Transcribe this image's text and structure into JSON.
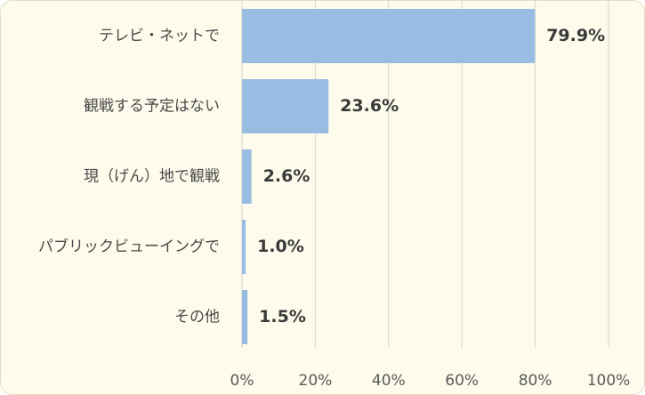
{
  "chart_data": {
    "type": "bar",
    "orientation": "horizontal",
    "categories": [
      "テレビ・ネットで",
      "観戦する予定はない",
      "現（げん）地で観戦",
      "パブリックビューイングで",
      "その他"
    ],
    "values": [
      79.9,
      23.6,
      2.6,
      1.0,
      1.5
    ],
    "value_labels": [
      "79.9%",
      "23.6%",
      "2.6%",
      "1.0%",
      "1.5%"
    ],
    "xlim": [
      0,
      100
    ],
    "x_ticks": [
      0,
      20,
      40,
      60,
      80,
      100
    ],
    "x_tick_labels": [
      "0%",
      "20%",
      "40%",
      "60%",
      "80%",
      "100%"
    ],
    "grid": "vertical",
    "legend": "none",
    "colors": {
      "bar": "#99bde2",
      "grid": "#d4d4cc",
      "background": "#fdfbeb"
    }
  }
}
